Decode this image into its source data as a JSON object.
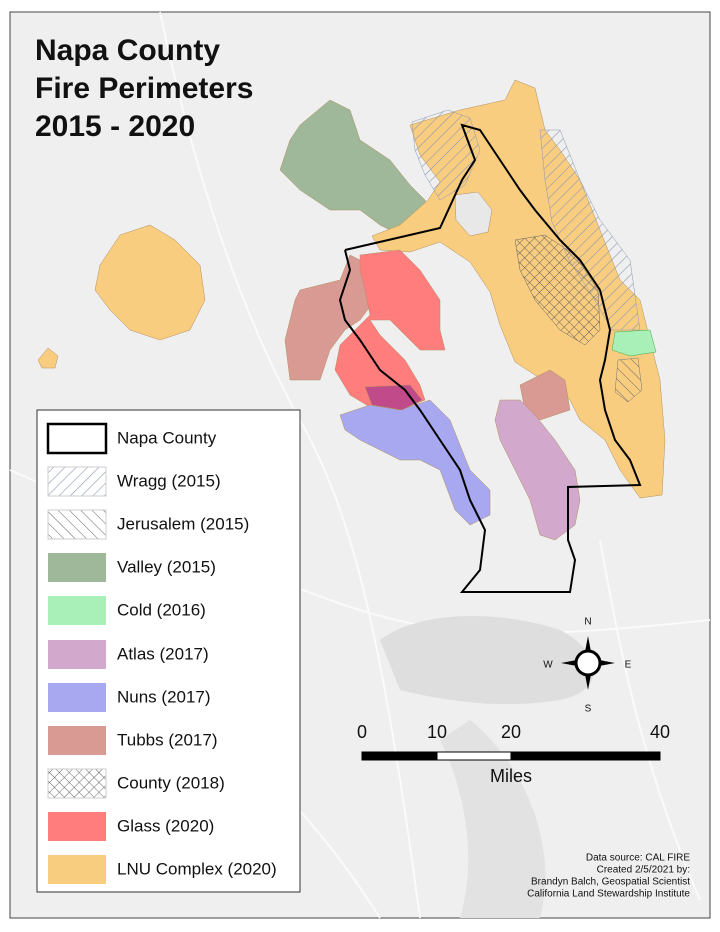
{
  "header": {
    "title": [
      "Napa County",
      "Fire Perimeters",
      "2015 - 2020"
    ]
  },
  "legend": {
    "items": [
      {
        "label": "Napa County"
      },
      {
        "label": "Wragg (2015)"
      },
      {
        "label": "Jerusalem (2015)"
      },
      {
        "label": "Valley (2015)"
      },
      {
        "label": "Cold (2016)"
      },
      {
        "label": "Atlas (2017)"
      },
      {
        "label": "Nuns (2017)"
      },
      {
        "label": "Tubbs (2017)"
      },
      {
        "label": "County (2018)"
      },
      {
        "label": "Glass (2020)"
      },
      {
        "label": "LNU Complex (2020)"
      }
    ]
  },
  "compass": {
    "north": "N",
    "east": "E",
    "south": "S",
    "west": "W"
  },
  "scale_bar": {
    "ticks": [
      0,
      10,
      20,
      40
    ],
    "unit": "Miles"
  },
  "credits": [
    "Data source: CAL FIRE",
    "Created 2/5/2021 by:",
    "Brandyn Balch, Geospatial Scientist",
    "California Land Stewardship Institute"
  ]
}
